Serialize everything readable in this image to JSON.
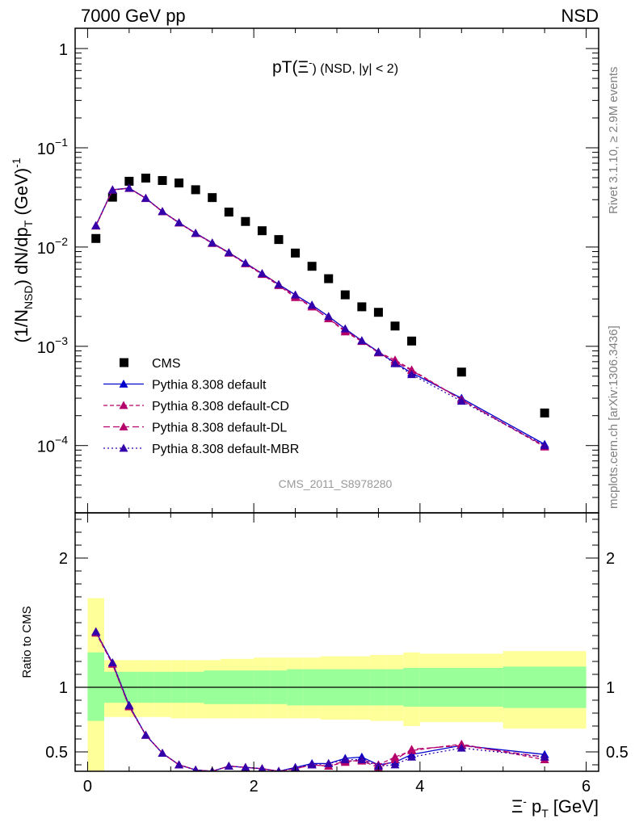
{
  "header": {
    "left": "7000 GeV pp",
    "right": "NSD"
  },
  "side_text": {
    "rivet": "Rivet 3.1.10, ≥ 2.9M events",
    "mcplots": "mcplots.cern.ch [arXiv:1306.3436]"
  },
  "analysis_label": "CMS_2011_S8978280",
  "colors": {
    "cms": "#000000",
    "default": "#0000cc",
    "cd": "#b5006b",
    "dl": "#b5006b",
    "mbr": "#3300aa",
    "band_outer": "#ffff99",
    "band_inner": "#99ff99"
  },
  "chart_data": [
    {
      "type": "scatter",
      "panel": "main",
      "title": "pT(Ξ⁻) (NSD, |y| < 2)",
      "title_main": "pT(Ξ",
      "title_sup": "-",
      "title_rest": ") (NSD, |y| < 2)",
      "ylabel": "(1/N_NSD) dN/dp_T (GeV)^-1",
      "y_scale": "log",
      "xlim": [
        -0.15,
        6.15
      ],
      "ylim": [
        2.1e-05,
        1.6
      ],
      "yticks": [
        {
          "v": 1,
          "base": "1",
          "exp": ""
        },
        {
          "v": 0.1,
          "base": "10",
          "exp": "−1"
        },
        {
          "v": 0.01,
          "base": "10",
          "exp": "−2"
        },
        {
          "v": 0.001,
          "base": "10",
          "exp": "−3"
        },
        {
          "v": 0.0001,
          "base": "10",
          "exp": "−4"
        }
      ],
      "legend_position": "bottom-left",
      "series": [
        {
          "name": "CMS",
          "style": "cms",
          "x": [
            0.1,
            0.3,
            0.5,
            0.7,
            0.9,
            1.1,
            1.3,
            1.5,
            1.7,
            1.9,
            2.1,
            2.3,
            2.5,
            2.7,
            2.9,
            3.1,
            3.3,
            3.5,
            3.7,
            3.9,
            4.5,
            5.5
          ],
          "y": [
            0.0122,
            0.0318,
            0.046,
            0.0495,
            0.0468,
            0.0442,
            0.0378,
            0.0315,
            0.0225,
            0.0181,
            0.0146,
            0.0119,
            0.0087,
            0.0064,
            0.0048,
            0.0033,
            0.0025,
            0.0022,
            0.0016,
            0.00113,
            0.00055,
            0.000213
          ]
        },
        {
          "name": "Pythia 8.308 default",
          "style": "default",
          "x": [
            0.1,
            0.3,
            0.5,
            0.7,
            0.9,
            1.1,
            1.3,
            1.5,
            1.7,
            1.9,
            2.1,
            2.3,
            2.5,
            2.7,
            2.9,
            3.1,
            3.3,
            3.5,
            3.7,
            3.9,
            4.5,
            5.5
          ],
          "y": [
            0.0165,
            0.0378,
            0.0392,
            0.0311,
            0.0228,
            0.0176,
            0.0138,
            0.011,
            0.0088,
            0.0069,
            0.0054,
            0.0042,
            0.0033,
            0.0026,
            0.002,
            0.0015,
            0.00114,
            0.00088,
            0.00068,
            0.00054,
            0.0003,
            0.000103
          ]
        },
        {
          "name": "Pythia 8.308 default-CD",
          "style": "cd",
          "x": [
            0.1,
            0.3,
            0.5,
            0.7,
            0.9,
            1.1,
            1.3,
            1.5,
            1.7,
            1.9,
            2.1,
            2.3,
            2.5,
            2.7,
            2.9,
            3.1,
            3.3,
            3.5,
            3.7,
            3.9,
            4.5,
            5.5
          ],
          "y": [
            0.0163,
            0.0375,
            0.039,
            0.0309,
            0.0227,
            0.0175,
            0.0137,
            0.0109,
            0.0087,
            0.0068,
            0.0053,
            0.0041,
            0.0031,
            0.0025,
            0.0019,
            0.0014,
            0.00112,
            0.00087,
            0.00073,
            0.00058,
            0.00029,
            9.7e-05
          ]
        },
        {
          "name": "Pythia 8.308 default-DL",
          "style": "dl",
          "x": [
            0.1,
            0.3,
            0.5,
            0.7,
            0.9,
            1.1,
            1.3,
            1.5,
            1.7,
            1.9,
            2.1,
            2.3,
            2.5,
            2.7,
            2.9,
            3.1,
            3.3,
            3.5,
            3.7,
            3.9,
            4.5,
            5.5
          ],
          "y": [
            0.0164,
            0.0377,
            0.0391,
            0.031,
            0.0228,
            0.0176,
            0.0138,
            0.011,
            0.0088,
            0.0069,
            0.0054,
            0.0042,
            0.0032,
            0.0025,
            0.0019,
            0.00145,
            0.00113,
            0.00086,
            0.0007,
            0.00057,
            0.00029,
            9.9e-05
          ]
        },
        {
          "name": "Pythia 8.308 default-MBR",
          "style": "mbr",
          "x": [
            0.1,
            0.3,
            0.5,
            0.7,
            0.9,
            1.1,
            1.3,
            1.5,
            1.7,
            1.9,
            2.1,
            2.3,
            2.5,
            2.7,
            2.9,
            3.1,
            3.3,
            3.5,
            3.7,
            3.9,
            4.5,
            5.5
          ],
          "y": [
            0.0164,
            0.0376,
            0.0392,
            0.031,
            0.0228,
            0.0176,
            0.0138,
            0.011,
            0.0088,
            0.0069,
            0.0054,
            0.0042,
            0.0033,
            0.0026,
            0.002,
            0.0015,
            0.00114,
            0.00087,
            0.00067,
            0.00052,
            0.00028,
            0.0001
          ]
        }
      ]
    },
    {
      "type": "line",
      "panel": "ratio",
      "ylabel": "Ratio to CMS",
      "xlabel": "Ξ⁻ p_T [GeV]",
      "xlabel_main": "Ξ",
      "xlabel_sup": "-",
      "xlabel_p": "p",
      "xlabel_sub": "T",
      "xlabel_unit": "[GeV]",
      "xlim": [
        -0.15,
        6.15
      ],
      "ylim": [
        0.35,
        2.35
      ],
      "xticks": [
        0,
        2,
        4,
        6
      ],
      "yticks": [
        0.5,
        1,
        2
      ],
      "reference_line": 1,
      "bands": {
        "edges": [
          0.0,
          0.2,
          0.4,
          0.6,
          0.8,
          1.0,
          1.2,
          1.4,
          1.6,
          1.8,
          2.0,
          2.2,
          2.4,
          2.6,
          2.8,
          3.0,
          3.2,
          3.4,
          3.6,
          3.8,
          4.0,
          5.0,
          6.0
        ],
        "outer_lo": [
          0.35,
          0.77,
          0.77,
          0.77,
          0.77,
          0.76,
          0.76,
          0.76,
          0.76,
          0.76,
          0.76,
          0.76,
          0.76,
          0.76,
          0.75,
          0.75,
          0.75,
          0.74,
          0.74,
          0.7,
          0.73,
          0.68
        ],
        "outer_hi": [
          1.69,
          1.21,
          1.21,
          1.21,
          1.21,
          1.21,
          1.21,
          1.21,
          1.22,
          1.22,
          1.23,
          1.23,
          1.23,
          1.23,
          1.24,
          1.24,
          1.24,
          1.25,
          1.25,
          1.27,
          1.26,
          1.28
        ],
        "inner_lo": [
          0.74,
          0.88,
          0.88,
          0.88,
          0.88,
          0.88,
          0.88,
          0.87,
          0.87,
          0.87,
          0.87,
          0.87,
          0.86,
          0.86,
          0.86,
          0.86,
          0.86,
          0.86,
          0.86,
          0.85,
          0.85,
          0.84
        ],
        "inner_hi": [
          1.27,
          1.12,
          1.12,
          1.12,
          1.12,
          1.12,
          1.12,
          1.13,
          1.13,
          1.13,
          1.13,
          1.13,
          1.14,
          1.14,
          1.14,
          1.14,
          1.14,
          1.14,
          1.14,
          1.15,
          1.15,
          1.16
        ]
      },
      "series": [
        {
          "name": "Pythia 8.308 default",
          "style": "default",
          "x": [
            0.1,
            0.3,
            0.5,
            0.7,
            0.9,
            1.1,
            1.3,
            1.5,
            1.7,
            1.9,
            2.1,
            2.3,
            2.5,
            2.7,
            2.9,
            3.1,
            3.3,
            3.5,
            3.7,
            3.9,
            4.5,
            5.5
          ],
          "y": [
            1.43,
            1.19,
            0.86,
            0.63,
            0.49,
            0.4,
            0.36,
            0.35,
            0.39,
            0.38,
            0.37,
            0.35,
            0.38,
            0.41,
            0.41,
            0.45,
            0.46,
            0.4,
            0.42,
            0.48,
            0.55,
            0.48
          ],
          "err": [
            0,
            0,
            0,
            0,
            0,
            0,
            0,
            0,
            0,
            0,
            0,
            0,
            0,
            0.015,
            0.015,
            0.02,
            0.02,
            0.02,
            0.025,
            0.025,
            0.02,
            0.025
          ]
        },
        {
          "name": "Pythia 8.308 default-CD",
          "style": "cd",
          "x": [
            0.1,
            0.3,
            0.5,
            0.7,
            0.9,
            1.1,
            1.3,
            1.5,
            1.7,
            1.9,
            2.1,
            2.3,
            2.5,
            2.7,
            2.9,
            3.1,
            3.3,
            3.5,
            3.7,
            3.9,
            4.5,
            5.5
          ],
          "y": [
            1.42,
            1.18,
            0.85,
            0.63,
            0.49,
            0.4,
            0.36,
            0.35,
            0.39,
            0.38,
            0.37,
            0.35,
            0.37,
            0.4,
            0.39,
            0.42,
            0.44,
            0.4,
            0.46,
            0.51,
            0.56,
            0.44
          ],
          "err": [
            0,
            0,
            0,
            0,
            0,
            0,
            0,
            0,
            0,
            0,
            0,
            0,
            0,
            0.015,
            0.015,
            0.02,
            0.02,
            0.02,
            0.025,
            0.025,
            0.02,
            0.025
          ]
        },
        {
          "name": "Pythia 8.308 default-DL",
          "style": "dl",
          "x": [
            0.1,
            0.3,
            0.5,
            0.7,
            0.9,
            1.1,
            1.3,
            1.5,
            1.7,
            1.9,
            2.1,
            2.3,
            2.5,
            2.7,
            2.9,
            3.1,
            3.3,
            3.5,
            3.7,
            3.9,
            4.5,
            5.5
          ],
          "y": [
            1.43,
            1.18,
            0.85,
            0.63,
            0.49,
            0.4,
            0.36,
            0.35,
            0.39,
            0.38,
            0.37,
            0.35,
            0.37,
            0.4,
            0.39,
            0.43,
            0.43,
            0.38,
            0.44,
            0.52,
            0.55,
            0.46
          ],
          "err": [
            0,
            0,
            0,
            0,
            0,
            0,
            0,
            0,
            0,
            0,
            0,
            0,
            0,
            0.015,
            0.015,
            0.02,
            0.02,
            0.02,
            0.025,
            0.025,
            0.02,
            0.025
          ]
        },
        {
          "name": "Pythia 8.308 default-MBR",
          "style": "mbr",
          "x": [
            0.1,
            0.3,
            0.5,
            0.7,
            0.9,
            1.1,
            1.3,
            1.5,
            1.7,
            1.9,
            2.1,
            2.3,
            2.5,
            2.7,
            2.9,
            3.1,
            3.3,
            3.5,
            3.7,
            3.9,
            4.5,
            5.5
          ],
          "y": [
            1.43,
            1.19,
            0.86,
            0.63,
            0.49,
            0.4,
            0.36,
            0.35,
            0.39,
            0.38,
            0.37,
            0.35,
            0.38,
            0.4,
            0.41,
            0.44,
            0.44,
            0.39,
            0.4,
            0.46,
            0.53,
            0.46
          ],
          "err": [
            0,
            0,
            0,
            0,
            0,
            0,
            0,
            0,
            0,
            0,
            0,
            0,
            0,
            0.015,
            0.015,
            0.02,
            0.02,
            0.02,
            0.025,
            0.025,
            0.02,
            0.025
          ]
        }
      ]
    }
  ]
}
